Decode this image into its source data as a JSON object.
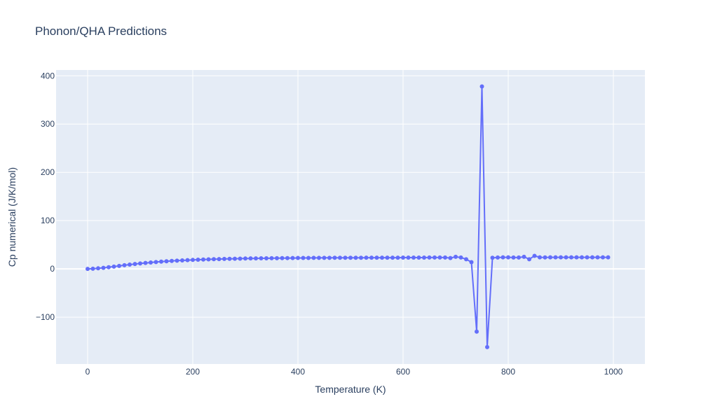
{
  "chart_data": {
    "type": "line",
    "title": "Phonon/QHA Predictions",
    "xlabel": "Temperature (K)",
    "ylabel": "Cp numerical (J/K/mol)",
    "xlim": [
      -60,
      1060
    ],
    "ylim": [
      -197,
      412
    ],
    "xticks": [
      0,
      200,
      400,
      600,
      800,
      1000
    ],
    "xtick_labels": [
      "0",
      "200",
      "400",
      "600",
      "800",
      "1000"
    ],
    "yticks": [
      -100,
      0,
      100,
      200,
      300,
      400
    ],
    "ytick_labels": [
      "−100",
      "0",
      "100",
      "200",
      "300",
      "400"
    ],
    "grid": true,
    "colors": {
      "series": "#636efa",
      "plot_bg": "#e5ecf6",
      "grid": "#ffffff",
      "text": "#2a3f5f"
    },
    "series": [
      {
        "mode": "lines+markers",
        "x": [
          0,
          10,
          20,
          30,
          40,
          50,
          60,
          70,
          80,
          90,
          100,
          110,
          120,
          130,
          140,
          150,
          160,
          170,
          180,
          190,
          200,
          210,
          220,
          230,
          240,
          250,
          260,
          270,
          280,
          290,
          300,
          310,
          320,
          330,
          340,
          350,
          360,
          370,
          380,
          390,
          400,
          410,
          420,
          430,
          440,
          450,
          460,
          470,
          480,
          490,
          500,
          510,
          520,
          530,
          540,
          550,
          560,
          570,
          580,
          590,
          600,
          610,
          620,
          630,
          640,
          650,
          660,
          670,
          680,
          690,
          700,
          710,
          720,
          730,
          740,
          750,
          760,
          770,
          780,
          790,
          800,
          810,
          820,
          830,
          840,
          850,
          860,
          870,
          880,
          890,
          900,
          910,
          920,
          930,
          940,
          950,
          960,
          970,
          980,
          990
        ],
        "y": [
          0,
          0.4,
          1.2,
          2.2,
          3.4,
          4.8,
          6.2,
          7.6,
          8.9,
          10.1,
          11.3,
          12.3,
          13.3,
          14.2,
          15,
          15.8,
          16.5,
          17.1,
          17.6,
          18.1,
          18.6,
          19,
          19.4,
          19.8,
          20.1,
          20.4,
          20.7,
          20.9,
          21.1,
          21.3,
          21.5,
          21.7,
          21.8,
          21.9,
          22,
          22.1,
          22.2,
          22.3,
          22.4,
          22.5,
          22.6,
          22.7,
          22.7,
          22.8,
          22.8,
          22.9,
          22.9,
          23,
          23,
          23,
          23.1,
          23.1,
          23.1,
          23.2,
          23.2,
          23.2,
          23.3,
          23.3,
          23.3,
          23.3,
          23.4,
          23.4,
          23.4,
          23.4,
          23.4,
          23.5,
          23.5,
          23.5,
          23.5,
          22.5,
          25,
          23.5,
          20,
          14,
          -130,
          378,
          -162,
          23,
          23.5,
          24,
          24,
          23.5,
          23.5,
          25,
          20,
          27,
          24,
          23.8,
          24,
          24,
          24,
          24,
          24,
          24,
          24,
          24,
          24,
          24,
          24,
          24
        ]
      }
    ]
  }
}
